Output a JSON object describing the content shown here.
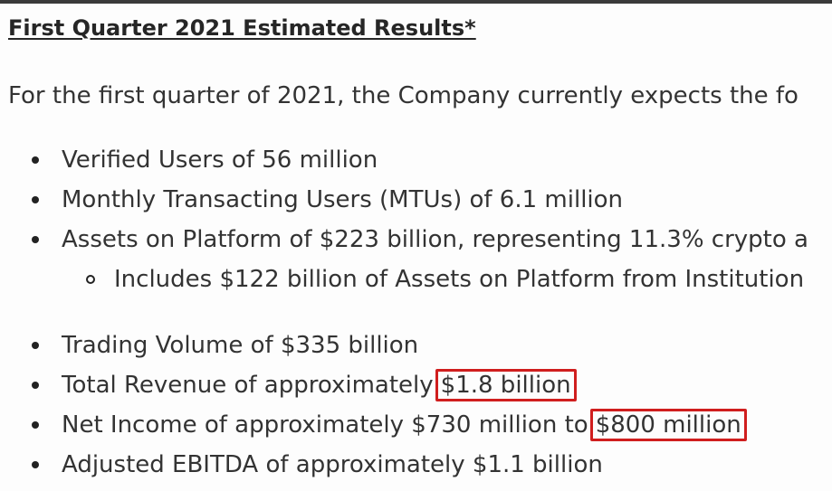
{
  "document": {
    "title": "First Quarter 2021 Estimated Results*",
    "intro": "For the first quarter of 2021, the Company currently expects the fo",
    "bullets": [
      {
        "text": "Verified Users of 56 million"
      },
      {
        "text": "Monthly Transacting Users (MTUs) of 6.1 million"
      },
      {
        "text": "Assets on Platform of $223 billion, representing 11.3% crypto a"
      },
      {
        "text": "Includes $122 billion of Assets on Platform from Institution"
      },
      {
        "text": "Trading Volume of $335 billion"
      },
      {
        "prefix": "Total Revenue of approximately",
        "highlight": "$1.8 billion"
      },
      {
        "prefix": "Net Income of approximately $730 million to",
        "highlight": "$800 million"
      },
      {
        "text": "Adjusted EBITDA of approximately $1.1 billion"
      }
    ]
  },
  "colors": {
    "highlight_border": "#d01e1e",
    "text": "#333333"
  }
}
